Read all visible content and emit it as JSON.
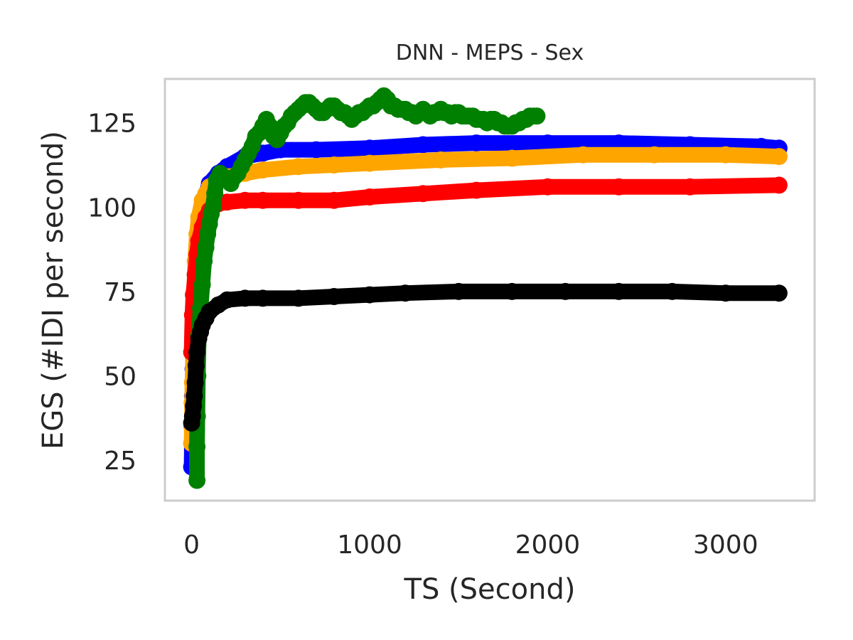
{
  "chart_data": {
    "type": "scatter",
    "title": "DNN - MEPS - Sex",
    "xlabel": "TS (Second)",
    "ylabel": "EGS (#IDI  per second)",
    "xlim": [
      -150,
      3500
    ],
    "ylim": [
      13,
      138
    ],
    "x_ticks": [
      0,
      1000,
      2000,
      3000
    ],
    "y_ticks": [
      25,
      50,
      75,
      100,
      125
    ],
    "x_tick_labels": [
      "0",
      "1000",
      "2000",
      "3000"
    ],
    "y_tick_labels": [
      "25",
      "50",
      "75",
      "100",
      "125"
    ],
    "grid": false,
    "legend": "none",
    "series": [
      {
        "color": "#0000ff",
        "points": [
          [
            0,
            23
          ],
          [
            3,
            35
          ],
          [
            5,
            44
          ],
          [
            8,
            52
          ],
          [
            10,
            62
          ],
          [
            12,
            66
          ],
          [
            15,
            71
          ],
          [
            20,
            76
          ],
          [
            25,
            81
          ],
          [
            30,
            85
          ],
          [
            40,
            90
          ],
          [
            50,
            96
          ],
          [
            70,
            102
          ],
          [
            100,
            107
          ],
          [
            150,
            110
          ],
          [
            200,
            112
          ],
          [
            300,
            115
          ],
          [
            400,
            116
          ],
          [
            500,
            117
          ],
          [
            700,
            117
          ],
          [
            1000,
            117.5
          ],
          [
            1300,
            118.5
          ],
          [
            1600,
            119
          ],
          [
            2000,
            119
          ],
          [
            2400,
            119
          ],
          [
            2800,
            118.5
          ],
          [
            3200,
            118
          ],
          [
            3300,
            117.5
          ]
        ]
      },
      {
        "color": "#ffa500",
        "points": [
          [
            0,
            30
          ],
          [
            3,
            42
          ],
          [
            5,
            48
          ],
          [
            8,
            56
          ],
          [
            10,
            65
          ],
          [
            15,
            75
          ],
          [
            20,
            84
          ],
          [
            30,
            92
          ],
          [
            40,
            97
          ],
          [
            60,
            102
          ],
          [
            80,
            104
          ],
          [
            100,
            106
          ],
          [
            150,
            108
          ],
          [
            200,
            109
          ],
          [
            300,
            110
          ],
          [
            400,
            111
          ],
          [
            600,
            112
          ],
          [
            800,
            112.5
          ],
          [
            1000,
            113
          ],
          [
            1400,
            114
          ],
          [
            1800,
            114.5
          ],
          [
            2200,
            115.5
          ],
          [
            2600,
            115.5
          ],
          [
            3000,
            115.5
          ],
          [
            3300,
            115
          ]
        ]
      },
      {
        "color": "#ff0000",
        "points": [
          [
            0,
            57
          ],
          [
            5,
            68
          ],
          [
            10,
            74
          ],
          [
            20,
            80
          ],
          [
            30,
            86
          ],
          [
            40,
            90
          ],
          [
            60,
            94
          ],
          [
            80,
            97
          ],
          [
            100,
            99
          ],
          [
            150,
            101
          ],
          [
            200,
            101.5
          ],
          [
            300,
            102
          ],
          [
            400,
            102
          ],
          [
            600,
            102
          ],
          [
            800,
            102
          ],
          [
            1000,
            103
          ],
          [
            1300,
            104
          ],
          [
            1600,
            105
          ],
          [
            2000,
            106
          ],
          [
            2400,
            106
          ],
          [
            2800,
            106
          ],
          [
            3300,
            106.5
          ]
        ]
      },
      {
        "color": "#008000",
        "points": [
          [
            30,
            19
          ],
          [
            30,
            29
          ],
          [
            32,
            38
          ],
          [
            35,
            50
          ],
          [
            40,
            62
          ],
          [
            50,
            70
          ],
          [
            60,
            77
          ],
          [
            70,
            84
          ],
          [
            80,
            88
          ],
          [
            90,
            92
          ],
          [
            100,
            95
          ],
          [
            110,
            98
          ],
          [
            120,
            100
          ],
          [
            130,
            104
          ],
          [
            140,
            108
          ],
          [
            160,
            110
          ],
          [
            180,
            109
          ],
          [
            200,
            108
          ],
          [
            220,
            107
          ],
          [
            240,
            109
          ],
          [
            260,
            110
          ],
          [
            280,
            112
          ],
          [
            300,
            114
          ],
          [
            320,
            116
          ],
          [
            340,
            118
          ],
          [
            360,
            121
          ],
          [
            380,
            122
          ],
          [
            400,
            124
          ],
          [
            420,
            126
          ],
          [
            440,
            124
          ],
          [
            460,
            121
          ],
          [
            480,
            120
          ],
          [
            500,
            122
          ],
          [
            520,
            124
          ],
          [
            540,
            125
          ],
          [
            560,
            127
          ],
          [
            580,
            128
          ],
          [
            600,
            129
          ],
          [
            620,
            130
          ],
          [
            640,
            131
          ],
          [
            660,
            131
          ],
          [
            680,
            130
          ],
          [
            700,
            129
          ],
          [
            720,
            128
          ],
          [
            740,
            128
          ],
          [
            760,
            129
          ],
          [
            780,
            130
          ],
          [
            800,
            130
          ],
          [
            820,
            129
          ],
          [
            840,
            128
          ],
          [
            860,
            128
          ],
          [
            880,
            127
          ],
          [
            900,
            126
          ],
          [
            920,
            127
          ],
          [
            940,
            128
          ],
          [
            960,
            128
          ],
          [
            980,
            129
          ],
          [
            1000,
            130
          ],
          [
            1020,
            130
          ],
          [
            1040,
            131
          ],
          [
            1060,
            132
          ],
          [
            1080,
            133
          ],
          [
            1100,
            132
          ],
          [
            1120,
            130
          ],
          [
            1140,
            130
          ],
          [
            1160,
            129
          ],
          [
            1180,
            129
          ],
          [
            1200,
            129
          ],
          [
            1220,
            128
          ],
          [
            1240,
            128
          ],
          [
            1260,
            127
          ],
          [
            1280,
            128
          ],
          [
            1300,
            129
          ],
          [
            1320,
            128
          ],
          [
            1340,
            127
          ],
          [
            1360,
            128
          ],
          [
            1380,
            128
          ],
          [
            1400,
            129
          ],
          [
            1420,
            128
          ],
          [
            1440,
            128
          ],
          [
            1460,
            127
          ],
          [
            1480,
            128
          ],
          [
            1500,
            128
          ],
          [
            1520,
            127
          ],
          [
            1540,
            127
          ],
          [
            1560,
            127
          ],
          [
            1580,
            127
          ],
          [
            1600,
            126
          ],
          [
            1620,
            126
          ],
          [
            1640,
            126
          ],
          [
            1660,
            125
          ],
          [
            1680,
            126
          ],
          [
            1700,
            126
          ],
          [
            1720,
            125
          ],
          [
            1740,
            125
          ],
          [
            1760,
            124
          ],
          [
            1780,
            124
          ],
          [
            1800,
            124
          ],
          [
            1820,
            125
          ],
          [
            1840,
            125
          ],
          [
            1860,
            126
          ],
          [
            1880,
            126
          ],
          [
            1900,
            127
          ],
          [
            1920,
            127
          ],
          [
            1940,
            127
          ]
        ]
      },
      {
        "color": "#000000",
        "points": [
          [
            0,
            36
          ],
          [
            5,
            38
          ],
          [
            10,
            41
          ],
          [
            15,
            44
          ],
          [
            20,
            48
          ],
          [
            25,
            53
          ],
          [
            30,
            57
          ],
          [
            40,
            61
          ],
          [
            50,
            63
          ],
          [
            60,
            65
          ],
          [
            80,
            67
          ],
          [
            100,
            69
          ],
          [
            150,
            71
          ],
          [
            200,
            72.5
          ],
          [
            300,
            73
          ],
          [
            400,
            73
          ],
          [
            600,
            73
          ],
          [
            800,
            73.5
          ],
          [
            1000,
            74
          ],
          [
            1200,
            74.5
          ],
          [
            1500,
            75
          ],
          [
            1800,
            75
          ],
          [
            2100,
            75
          ],
          [
            2400,
            75
          ],
          [
            2700,
            75
          ],
          [
            3000,
            74.5
          ],
          [
            3300,
            74.5
          ]
        ]
      }
    ]
  }
}
